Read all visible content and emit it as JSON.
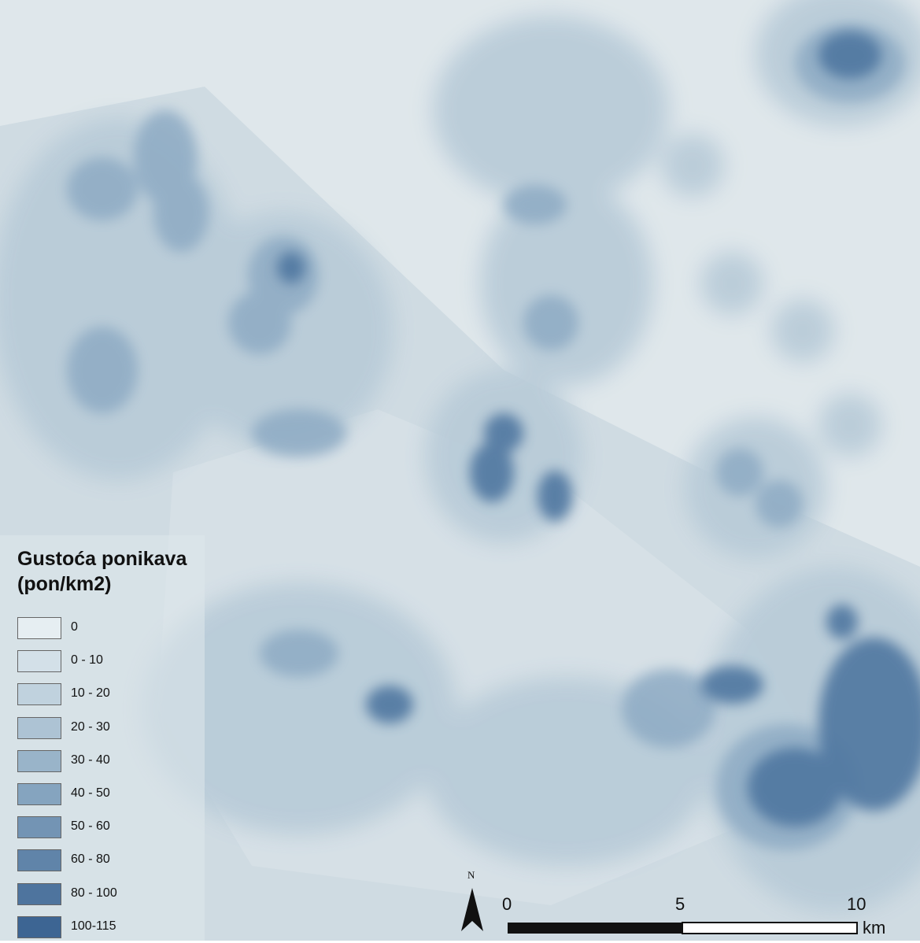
{
  "legend": {
    "title_line1": "Gustoća ponikava",
    "title_line2": "(pon/km2)",
    "classes": [
      {
        "label": "0",
        "color": "#e6eef2"
      },
      {
        "label": "0 - 10",
        "color": "#d3e0e8"
      },
      {
        "label": "10 - 20",
        "color": "#c0d2de"
      },
      {
        "label": "20 - 30",
        "color": "#adc3d4"
      },
      {
        "label": "30 - 40",
        "color": "#99b4c9"
      },
      {
        "label": "40 - 50",
        "color": "#85a4bf"
      },
      {
        "label": "50 - 60",
        "color": "#7394b4"
      },
      {
        "label": "60 - 80",
        "color": "#6084a9"
      },
      {
        "label": "80 - 100",
        "color": "#4e749e"
      },
      {
        "label": "100-115",
        "color": "#3d6593"
      }
    ]
  },
  "north_arrow": {
    "label": "N",
    "icon": "north-arrow-icon"
  },
  "scale_bar": {
    "labels": [
      "0",
      "5",
      "10"
    ],
    "unit": "km"
  }
}
